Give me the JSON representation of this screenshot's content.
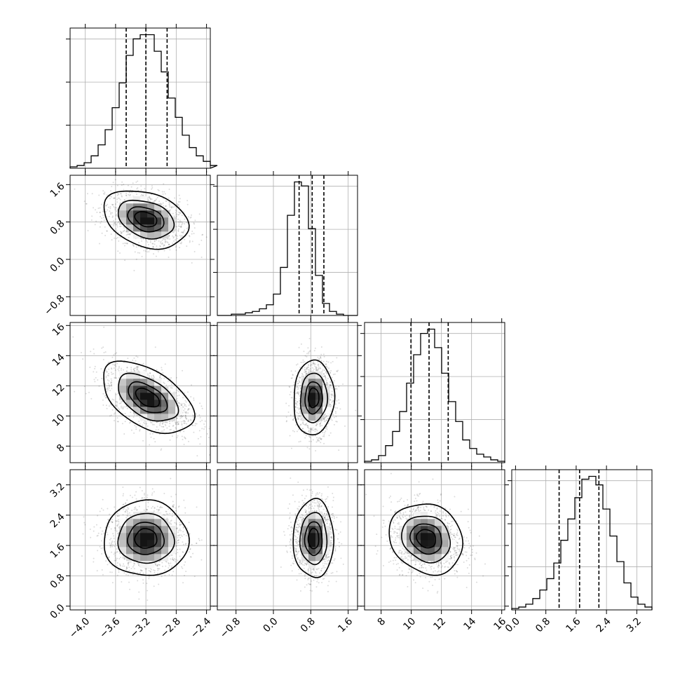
{
  "chart_data": {
    "type": "corner",
    "title": "",
    "params": [
      {
        "range": [
          -4.2,
          -2.35
        ],
        "ticks": [
          -4.0,
          -3.6,
          -3.2,
          -2.8,
          -2.4
        ],
        "tick_labels": [
          "−4.0",
          "−3.6",
          "−3.2",
          "−2.8",
          "−2.4"
        ],
        "quantiles": [
          -3.46,
          -3.2,
          -2.92
        ],
        "hist_bins": {
          "start": -4.2,
          "width": 0.0925,
          "counts": [
            1,
            2,
            4,
            9,
            17,
            28,
            44,
            62,
            82,
            94,
            97,
            97,
            85,
            70,
            51,
            37,
            24,
            15,
            9,
            5,
            2
          ]
        }
      },
      {
        "range": [
          -1.2,
          1.8
        ],
        "ticks": [
          -0.8,
          0.0,
          0.8,
          1.6
        ],
        "tick_labels": [
          "−0.8",
          "0.0",
          "0.8",
          "1.6"
        ],
        "quantiles": [
          0.55,
          0.83,
          1.08
        ],
        "hist_bins": {
          "start": -1.2,
          "width": 0.15,
          "counts": [
            0,
            0,
            1,
            1,
            2,
            3,
            5,
            8,
            16,
            36,
            75,
            100,
            97,
            65,
            30,
            9,
            3,
            1,
            0,
            0
          ]
        }
      },
      {
        "range": [
          6.9,
          16.2
        ],
        "ticks": [
          8,
          10,
          12,
          14,
          16
        ],
        "tick_labels": [
          "8",
          "10",
          "12",
          "14",
          "16"
        ],
        "quantiles": [
          9.98,
          11.18,
          12.45
        ],
        "hist_bins": {
          "start": 6.9,
          "width": 0.465,
          "counts": [
            1,
            2,
            5,
            12,
            22,
            36,
            56,
            76,
            91,
            94,
            81,
            63,
            43,
            29,
            16,
            10,
            6,
            4,
            2,
            1
          ]
        }
      },
      {
        "range": [
          -0.1,
          3.6
        ],
        "ticks": [
          0.0,
          0.8,
          1.6,
          2.4,
          3.2
        ],
        "tick_labels": [
          "0.0",
          "0.8",
          "1.6",
          "2.4",
          "3.2"
        ],
        "quantiles": [
          1.15,
          1.69,
          2.2
        ],
        "hist_bins": {
          "start": -0.1,
          "width": 0.185,
          "counts": [
            1,
            2,
            4,
            8,
            14,
            22,
            33,
            49,
            64,
            79,
            92,
            94,
            88,
            71,
            52,
            34,
            19,
            9,
            4,
            2
          ]
        }
      }
    ],
    "pairs": [
      {
        "x": 0,
        "y": 1,
        "center": [
          -3.2,
          0.86
        ],
        "sd": [
          0.27,
          0.3
        ],
        "rho": -0.3
      },
      {
        "x": 0,
        "y": 2,
        "center": [
          -3.18,
          11.2
        ],
        "sd": [
          0.29,
          1.15
        ],
        "rho": -0.5
      },
      {
        "x": 1,
        "y": 2,
        "center": [
          0.86,
          11.2
        ],
        "sd": [
          0.21,
          1.2
        ],
        "rho": 0.05
      },
      {
        "x": 0,
        "y": 3,
        "center": [
          -3.2,
          1.78
        ],
        "sd": [
          0.27,
          0.48
        ],
        "rho": 0.0
      },
      {
        "x": 1,
        "y": 3,
        "center": [
          0.86,
          1.78
        ],
        "sd": [
          0.21,
          0.5
        ],
        "rho": 0.0
      },
      {
        "x": 2,
        "y": 3,
        "center": [
          11.0,
          1.78
        ],
        "sd": [
          1.18,
          0.45
        ],
        "rho": -0.15
      }
    ],
    "contour_levels_sigma": [
      0.5,
      1.0,
      1.5,
      2.0
    ],
    "grid": true,
    "legend": "none"
  }
}
